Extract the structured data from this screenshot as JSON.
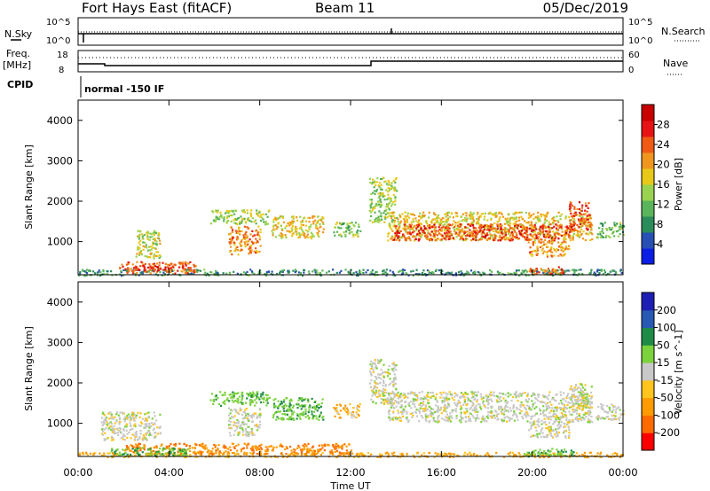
{
  "header": {
    "station": "Fort Hays East (fitACF)",
    "beam": "Beam 11",
    "date": "05/Dec/2019"
  },
  "top_panels": {
    "nsky_label": "N.Sky",
    "nsearch_label": "N.Search",
    "left_tick_top": "10^5",
    "left_tick_bottom": "10^0",
    "right_tick_top": "10^5",
    "right_tick_bottom": "10^0",
    "freq_label_1": "Freq.",
    "freq_label_2": "[MHz]",
    "freq_tick_top": "18",
    "freq_tick_bottom": "8",
    "nave_label": "Nave",
    "nave_tick_top": "60",
    "nave_tick_bottom": "0",
    "cpid_label": "CPID",
    "cpid_value": "normal -150 IF"
  },
  "colors": {
    "power": [
      "#0a1ee6",
      "#2850b4",
      "#2a8c5a",
      "#5ab45a",
      "#9ad34f",
      "#e8c818",
      "#f0961e",
      "#f05a14",
      "#e61414",
      "#c80000"
    ],
    "velocity": [
      "#ff0000",
      "#ff6a00",
      "#ff9a00",
      "#ffc41e",
      "#c8c8c8",
      "#7cd23c",
      "#1e8c46",
      "#285ab4",
      "#1e1eb4"
    ]
  },
  "chart_data": [
    {
      "type": "heatmap",
      "name": "power",
      "ylabel": "Slant Range [km]",
      "xlim": [
        "00:00",
        "00:00"
      ],
      "ylim": [
        180,
        4500
      ],
      "yticks": [
        1000,
        2000,
        3000,
        4000
      ],
      "colorbar_label": "Power [dB]",
      "colorbar_ticks": [
        "4",
        "8",
        "12",
        "16",
        "20",
        "24",
        "28"
      ],
      "colorbar_range": [
        0,
        32
      ],
      "regions": [
        {
          "t0": 0.0,
          "t1": 24.0,
          "r0": 180,
          "r1": 330,
          "value": 8
        },
        {
          "t0": 1.8,
          "t1": 5.2,
          "r0": 230,
          "r1": 520,
          "value": 24
        },
        {
          "t0": 2.6,
          "t1": 4.2,
          "r0": 300,
          "r1": 420,
          "value": 30
        },
        {
          "t0": 2.5,
          "t1": 3.6,
          "r0": 600,
          "r1": 1300,
          "value": 16
        },
        {
          "t0": 6.6,
          "t1": 8.0,
          "r0": 700,
          "r1": 1400,
          "value": 22
        },
        {
          "t0": 5.8,
          "t1": 8.4,
          "r0": 1450,
          "r1": 1800,
          "value": 14
        },
        {
          "t0": 8.5,
          "t1": 10.8,
          "r0": 1100,
          "r1": 1650,
          "value": 18
        },
        {
          "t0": 11.2,
          "t1": 12.4,
          "r0": 1150,
          "r1": 1500,
          "value": 12
        },
        {
          "t0": 12.8,
          "t1": 14.0,
          "r0": 1500,
          "r1": 2600,
          "value": 14
        },
        {
          "t0": 13.6,
          "t1": 22.6,
          "r0": 1050,
          "r1": 1750,
          "value": 18
        },
        {
          "t0": 13.8,
          "t1": 21.8,
          "r0": 1050,
          "r1": 1450,
          "value": 26
        },
        {
          "t0": 19.8,
          "t1": 21.6,
          "r0": 650,
          "r1": 1050,
          "value": 22
        },
        {
          "t0": 21.6,
          "t1": 22.6,
          "r0": 1300,
          "r1": 2000,
          "value": 26
        },
        {
          "t0": 19.8,
          "t1": 21.4,
          "r0": 200,
          "r1": 400,
          "value": 24
        },
        {
          "t0": 22.8,
          "t1": 24.0,
          "r0": 1100,
          "r1": 1500,
          "value": 12
        }
      ]
    },
    {
      "type": "heatmap",
      "name": "velocity",
      "ylabel": "Slant Range [km]",
      "xlabel": "Time UT",
      "xlim": [
        "00:00",
        "00:00"
      ],
      "ylim": [
        180,
        4500
      ],
      "yticks": [
        1000,
        2000,
        3000,
        4000
      ],
      "xticks": [
        "00:00",
        "04:00",
        "08:00",
        "12:00",
        "16:00",
        "20:00",
        "00:00"
      ],
      "colorbar_label": "Velocity [m s^-1]",
      "colorbar_ticks": [
        "-200",
        "-100",
        "-50",
        "-15",
        "15",
        "50",
        "100",
        "200"
      ],
      "regions": [
        {
          "t0": 0.0,
          "t1": 24.0,
          "r0": 180,
          "r1": 300,
          "value": -40
        },
        {
          "t0": 2.0,
          "t1": 12.0,
          "r0": 250,
          "r1": 520,
          "value": -70
        },
        {
          "t0": 1.0,
          "t1": 3.6,
          "r0": 600,
          "r1": 1300,
          "value": 0
        },
        {
          "t0": 1.4,
          "t1": 4.8,
          "r0": 200,
          "r1": 420,
          "value": 40
        },
        {
          "t0": 6.6,
          "t1": 8.0,
          "r0": 700,
          "r1": 1400,
          "value": 0
        },
        {
          "t0": 5.8,
          "t1": 8.4,
          "r0": 1450,
          "r1": 1800,
          "value": 40
        },
        {
          "t0": 8.5,
          "t1": 10.8,
          "r0": 1100,
          "r1": 1650,
          "value": 40
        },
        {
          "t0": 11.2,
          "t1": 12.4,
          "r0": 1150,
          "r1": 1500,
          "value": -30
        },
        {
          "t0": 12.8,
          "t1": 14.0,
          "r0": 1500,
          "r1": 2600,
          "value": 0
        },
        {
          "t0": 13.6,
          "t1": 22.6,
          "r0": 1050,
          "r1": 1800,
          "value": 0
        },
        {
          "t0": 19.8,
          "t1": 21.6,
          "r0": 650,
          "r1": 1050,
          "value": 0
        },
        {
          "t0": 21.6,
          "t1": 22.6,
          "r0": 1300,
          "r1": 2000,
          "value": 0
        },
        {
          "t0": 19.6,
          "t1": 21.8,
          "r0": 200,
          "r1": 400,
          "value": 40
        },
        {
          "t0": 22.8,
          "t1": 24.0,
          "r0": 1100,
          "r1": 1500,
          "value": 0
        }
      ]
    }
  ]
}
